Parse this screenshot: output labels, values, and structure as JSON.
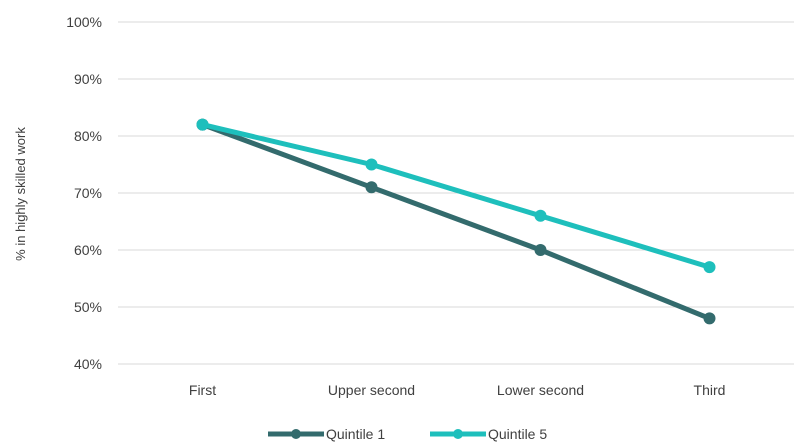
{
  "chart_data": {
    "type": "line",
    "title": "",
    "xlabel": "",
    "ylabel": "% in highly skilled work",
    "categories": [
      "First",
      "Upper second",
      "Lower second",
      "Third"
    ],
    "y_ticks": [
      "40%",
      "50%",
      "60%",
      "70%",
      "80%",
      "90%",
      "100%"
    ],
    "ylim": [
      40,
      100
    ],
    "grid": true,
    "legend_position": "bottom",
    "series": [
      {
        "name": "Quintile 1",
        "color": "#336b6d",
        "values": [
          82,
          71,
          60,
          48
        ]
      },
      {
        "name": "Quintile 5",
        "color": "#1ebfbc",
        "values": [
          82,
          75,
          66,
          57
        ]
      }
    ]
  }
}
